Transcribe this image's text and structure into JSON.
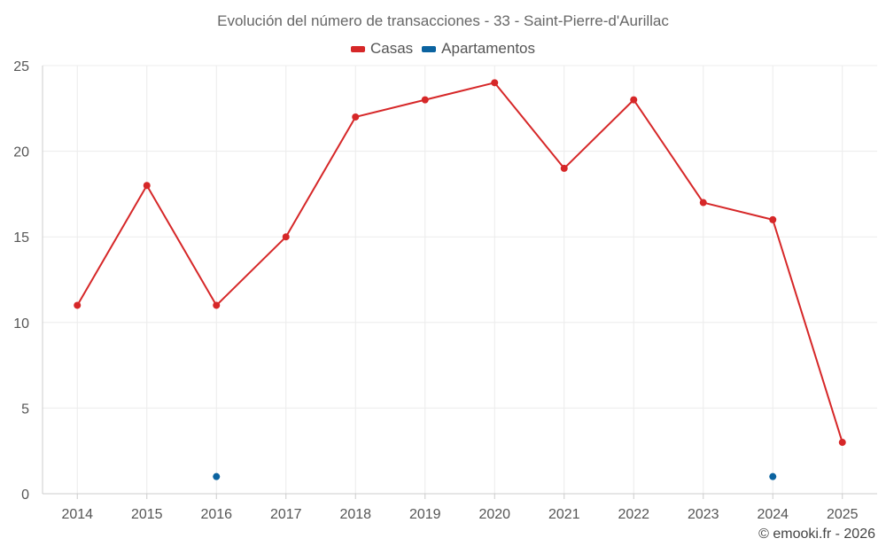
{
  "chart_data": {
    "type": "line",
    "title": "Evolución del número de transacciones - 33 - Saint-Pierre-d'Aurillac",
    "xlabel": "",
    "ylabel": "",
    "categories": [
      "2014",
      "2015",
      "2016",
      "2017",
      "2018",
      "2019",
      "2020",
      "2021",
      "2022",
      "2023",
      "2024",
      "2025"
    ],
    "ylim": [
      0,
      25
    ],
    "yticks": [
      0,
      5,
      10,
      15,
      20,
      25
    ],
    "grid": true,
    "legend_position": "top-center",
    "series": [
      {
        "name": "Casas",
        "color": "#d62728",
        "values": [
          11,
          18,
          11,
          15,
          22,
          23,
          24,
          19,
          23,
          17,
          16,
          3
        ]
      },
      {
        "name": "Apartamentos",
        "color": "#0b63a0",
        "values": [
          null,
          null,
          1,
          null,
          null,
          null,
          null,
          null,
          null,
          null,
          1,
          null
        ]
      }
    ]
  },
  "credit": "© emooki.fr - 2026"
}
